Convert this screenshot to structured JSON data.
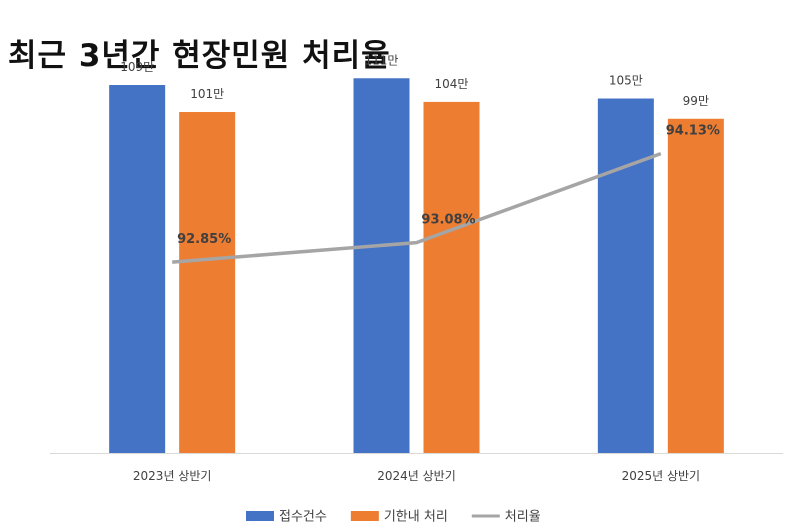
{
  "chart_data": {
    "type": "bar",
    "title": "최근 3년간 현장민원 처리율",
    "categories": [
      "2023년 상반기",
      "2024년 상반기",
      "2025년 상반기"
    ],
    "series": [
      {
        "name": "접수건수",
        "type": "bar",
        "color": "#4472C4",
        "values": [
          109,
          111,
          105
        ],
        "labels": [
          "109만",
          "111만",
          "105만"
        ]
      },
      {
        "name": "기한내 처리",
        "type": "bar",
        "color": "#ED7D31",
        "values": [
          101,
          104,
          99
        ],
        "labels": [
          "101만",
          "104만",
          "99만"
        ]
      },
      {
        "name": "처리율",
        "type": "line",
        "color": "#A5A5A5",
        "values": [
          92.85,
          93.08,
          94.13
        ],
        "labels": [
          "92.85%",
          "93.08%",
          "94.13%"
        ]
      }
    ],
    "bar_axis": {
      "unit": "만",
      "range": [
        0,
        125
      ]
    },
    "line_axis": {
      "unit": "%",
      "range": [
        91.4,
        94.55
      ]
    },
    "grid": false,
    "legend": "bottom"
  }
}
